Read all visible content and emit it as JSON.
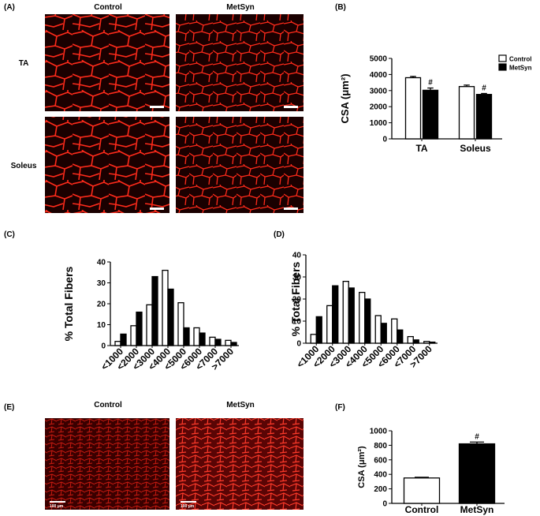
{
  "figure": {
    "panel_labels": [
      "(A)",
      "(B)",
      "(C)",
      "(D)",
      "(E)",
      "(F)"
    ],
    "a_columns": [
      "Control",
      "MetSyn"
    ],
    "a_rows": [
      "TA",
      "Soleus"
    ],
    "e_columns": [
      "Control",
      "MetSyn"
    ],
    "scale_bar": "100 μm"
  },
  "chart_data": [
    {
      "type": "bar",
      "ylabel": "CSA (μm²)",
      "categories": [
        "TA",
        "Soleus"
      ],
      "series": [
        {
          "name": "Control",
          "color": "#ffffff",
          "values": [
            3800,
            3250
          ],
          "errors": [
            80,
            90
          ]
        },
        {
          "name": "MetSyn",
          "color": "#000000",
          "values": [
            3020,
            2760
          ],
          "errors": [
            140,
            60
          ],
          "annotations": [
            "#",
            "#"
          ]
        }
      ],
      "ylim": [
        0,
        5000
      ],
      "yticks": [
        0,
        1000,
        2000,
        3000,
        4000,
        5000
      ]
    },
    {
      "type": "bar",
      "ylabel": "% Total Fibers",
      "categories": [
        "<1000",
        "<2000",
        "<3000",
        "<4000",
        "<5000",
        "<6000",
        "<7000",
        ">7000"
      ],
      "series": [
        {
          "color": "#ffffff",
          "values": [
            2,
            9.5,
            19.5,
            36,
            20.5,
            8.5,
            4,
            2.5
          ]
        },
        {
          "color": "#000000",
          "values": [
            5.5,
            16,
            33,
            27,
            8.5,
            6,
            3,
            1.5
          ]
        }
      ],
      "ylim": [
        0,
        40
      ],
      "yticks": [
        0,
        10,
        20,
        30,
        40
      ]
    },
    {
      "type": "bar",
      "ylabel": "% Total Fibers",
      "categories": [
        "<1000",
        "<2000",
        "<3000",
        "<4000",
        "<5000",
        "<6000",
        "<7000",
        ">7000"
      ],
      "series": [
        {
          "color": "#ffffff",
          "values": [
            4,
            17,
            28,
            23,
            12.5,
            11,
            3,
            0.8
          ]
        },
        {
          "color": "#000000",
          "values": [
            12,
            26,
            25,
            20,
            9,
            6,
            1.5,
            0.5
          ]
        }
      ],
      "ylim": [
        0,
        40
      ],
      "yticks": [
        0,
        10,
        20,
        30,
        40
      ]
    },
    {
      "type": "bar",
      "ylabel": "CSA (μm²)",
      "categories": [
        "Control",
        "MetSyn"
      ],
      "series": [
        {
          "colors": [
            "#ffffff",
            "#000000"
          ],
          "values": [
            350,
            820
          ],
          "errors": [
            10,
            25
          ],
          "annotations": [
            null,
            "#"
          ]
        }
      ],
      "ylim": [
        0,
        1000
      ],
      "yticks": [
        0,
        200,
        400,
        600,
        800,
        1000
      ]
    }
  ]
}
